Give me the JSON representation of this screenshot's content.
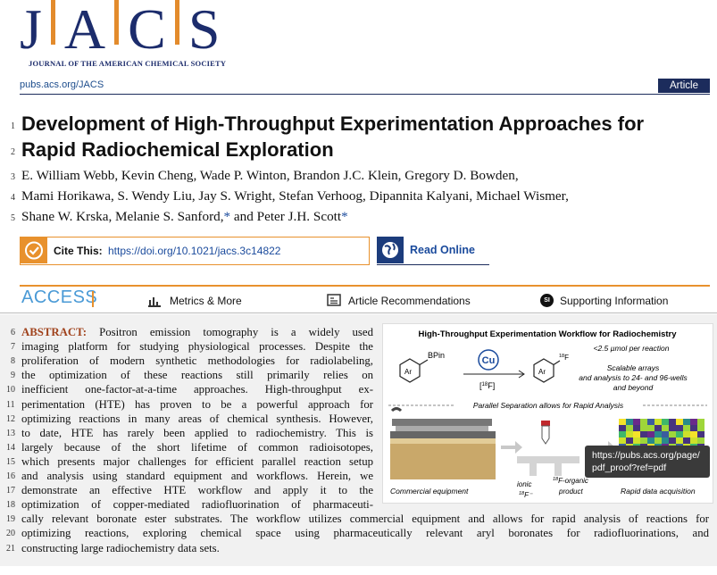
{
  "header": {
    "logo": [
      "J",
      "A",
      "C",
      "S"
    ],
    "society": "JOURNAL OF THE AMERICAN CHEMICAL SOCIETY",
    "url": "pubs.acs.org/JACS",
    "type": "Article"
  },
  "title": {
    "lines": [
      {
        "num": "1",
        "text": "Development of High-Throughput Experimentation Approaches for"
      },
      {
        "num": "2",
        "text": "Rapid Radiochemical Exploration"
      }
    ]
  },
  "authors": {
    "lines": [
      {
        "num": "3",
        "parts": [
          "E. William Webb, Kevin Cheng, Wade P. Winton, Brandon J.C. Klein, Gregory D. Bowden,"
        ]
      },
      {
        "num": "4",
        "parts": [
          "Mami Horikawa, S. Wendy Liu, Jay S. Wright, Stefan Verhoog, Dipannita Kalyani, Michael Wismer,"
        ]
      },
      {
        "num": "5",
        "parts": [
          "Shane W. Krska, Melanie S. Sanford,",
          "*",
          " and Peter J.H. Scott",
          "*"
        ]
      }
    ]
  },
  "cite": {
    "label": "Cite This:",
    "doi": "https://doi.org/10.1021/jacs.3c14822"
  },
  "read_online": "Read Online",
  "access": {
    "label": "ACCESS",
    "items": [
      {
        "text": "Metrics & More"
      },
      {
        "text": "Article Recommendations"
      },
      {
        "icon": "SI",
        "text": "Supporting Information"
      }
    ]
  },
  "abstract": {
    "lines": [
      {
        "num": "6",
        "label": "ABSTRACT:",
        "text": "Positron emission tomography is a widely used"
      },
      {
        "num": "7",
        "text": "imaging platform for studying physiological processes. Despite the"
      },
      {
        "num": "8",
        "text": "proliferation of modern synthetic methodologies for radiolabeling,"
      },
      {
        "num": "9",
        "text": "the optimization of these reactions still primarily relies on"
      },
      {
        "num": "10",
        "text": "inefficient one-factor-at-a-time approaches. High-throughput ex-"
      },
      {
        "num": "11",
        "text": "perimentation (HTE) has proven to be a powerful approach for"
      },
      {
        "num": "12",
        "text": "optimizing reactions in many areas of chemical synthesis. However,"
      },
      {
        "num": "13",
        "text": "to date, HTE has rarely been applied to radiochemistry. This is"
      },
      {
        "num": "14",
        "text": "largely because of the short lifetime of common radioisotopes,"
      },
      {
        "num": "15",
        "text": "which presents major challenges for efficient parallel reaction setup"
      },
      {
        "num": "16",
        "text": "and analysis using standard equipment and workflows. Herein, we"
      },
      {
        "num": "17",
        "text": "demonstrate an effective HTE workflow and apply it to the"
      },
      {
        "num": "18",
        "text": "optimization of copper-mediated radiofluorination of pharmaceuti-"
      },
      {
        "num": "19",
        "text": "cally relevant boronate ester substrates. The workflow utilizes commercial equipment and allows for rapid analysis of reactions for"
      },
      {
        "num": "20",
        "text": "optimizing reactions, exploring chemical space using pharmaceutically relevant aryl boronates for radiofluorinations, and"
      },
      {
        "num": "21",
        "text": "constructing large radiochemistry data sets."
      }
    ]
  },
  "toc": {
    "title": "High-Throughput Experimentation Workflow for Radiochemistry",
    "boron": "BPin",
    "aryl": "Ar",
    "catalyst": "Cu",
    "isotope": {
      "open": "[",
      "sup": "18",
      "rest": "F]"
    },
    "product_label": {
      "sup": "18",
      "rest": "F"
    },
    "scale": "<2.5 µmol per reaction",
    "arrays": [
      "Scalable arrays",
      "and analysis to 24- and 96-wells",
      "and beyond"
    ],
    "separation": "Parallel Separation allows for Rapid Analysis",
    "ionic": {
      "word": "ionic",
      "sup": "18",
      "rest": "F⁻"
    },
    "organic": {
      "sup": "18",
      "rest": "F-organic",
      "word": "product"
    },
    "equipment": "Commercial equipment",
    "acquisition": "Rapid data acquisition"
  },
  "tooltip": [
    "https://pubs.acs.org/page/",
    "pdf_proof?ref=pdf"
  ]
}
